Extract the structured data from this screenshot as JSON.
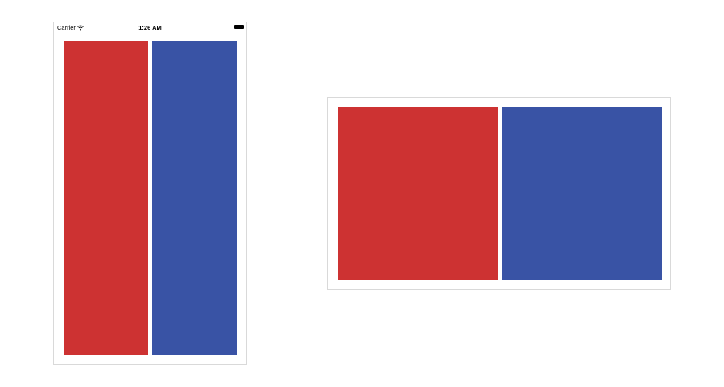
{
  "status_bar": {
    "carrier": "Carrier",
    "time": "1:26 AM",
    "wifi_icon": "wifi-icon",
    "battery_icon": "battery-icon"
  },
  "colors": {
    "red_panel": "#cd3232",
    "blue_panel": "#3953a5",
    "frame_border": "#d9d9d9",
    "background": "#ffffff"
  },
  "devices": [
    {
      "orientation": "portrait",
      "panels": [
        "red-view",
        "blue-view"
      ]
    },
    {
      "orientation": "landscape",
      "panels": [
        "red-view",
        "blue-view"
      ]
    }
  ]
}
